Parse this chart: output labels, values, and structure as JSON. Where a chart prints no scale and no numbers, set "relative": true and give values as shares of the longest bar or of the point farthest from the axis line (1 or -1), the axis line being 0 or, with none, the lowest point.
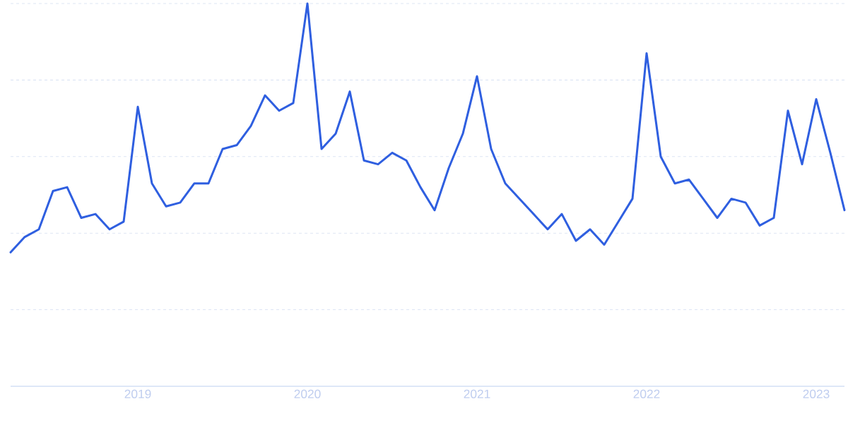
{
  "chart_data": {
    "type": "line",
    "relative": true,
    "grid": "y",
    "marker": "none",
    "line_style": "solid",
    "x": [
      "2018-04",
      "2018-05",
      "2018-06",
      "2018-07",
      "2018-08",
      "2018-09",
      "2018-10",
      "2018-11",
      "2018-12",
      "2019-01",
      "2019-02",
      "2019-03",
      "2019-04",
      "2019-05",
      "2019-06",
      "2019-07",
      "2019-08",
      "2019-09",
      "2019-10",
      "2019-11",
      "2019-12",
      "2020-01",
      "2020-02",
      "2020-03",
      "2020-04",
      "2020-05",
      "2020-06",
      "2020-07",
      "2020-08",
      "2020-09",
      "2020-10",
      "2020-11",
      "2020-12",
      "2021-01",
      "2021-02",
      "2021-03",
      "2021-04",
      "2021-05",
      "2021-06",
      "2021-07",
      "2021-08",
      "2021-09",
      "2021-10",
      "2021-11",
      "2021-12",
      "2022-01",
      "2022-02",
      "2022-03",
      "2022-04",
      "2022-05",
      "2022-06",
      "2022-07",
      "2022-08",
      "2022-09",
      "2022-10",
      "2022-11",
      "2022-12",
      "2023-01",
      "2023-02",
      "2023-03"
    ],
    "series": [
      {
        "color": "#2f5fe0",
        "values": [
          0.35,
          0.39,
          0.41,
          0.51,
          0.52,
          0.44,
          0.45,
          0.41,
          0.43,
          0.73,
          0.53,
          0.47,
          0.48,
          0.53,
          0.53,
          0.62,
          0.63,
          0.68,
          0.76,
          0.72,
          0.74,
          1,
          0.62,
          0.66,
          0.77,
          0.59,
          0.58,
          0.61,
          0.59,
          0.52,
          0.46,
          0.57,
          0.66,
          0.81,
          0.62,
          0.53,
          0.49,
          0.45,
          0.41,
          0.45,
          0.38,
          0.41,
          0.37,
          0.43,
          0.49,
          0.87,
          0.6,
          0.53,
          0.54,
          0.49,
          0.44,
          0.49,
          0.48,
          0.42,
          0.44,
          0.72,
          0.58,
          0.75,
          0.61,
          0.46
        ]
      }
    ],
    "xlim": [
      "2018-04",
      "2023-03"
    ],
    "xticks": [
      {
        "value": "2019-01",
        "label": "2019"
      },
      {
        "value": "2020-01",
        "label": "2020"
      },
      {
        "value": "2021-01",
        "label": "2021"
      },
      {
        "value": "2022-01",
        "label": "2022"
      },
      {
        "value": "2023-01",
        "label": "2023"
      }
    ]
  }
}
